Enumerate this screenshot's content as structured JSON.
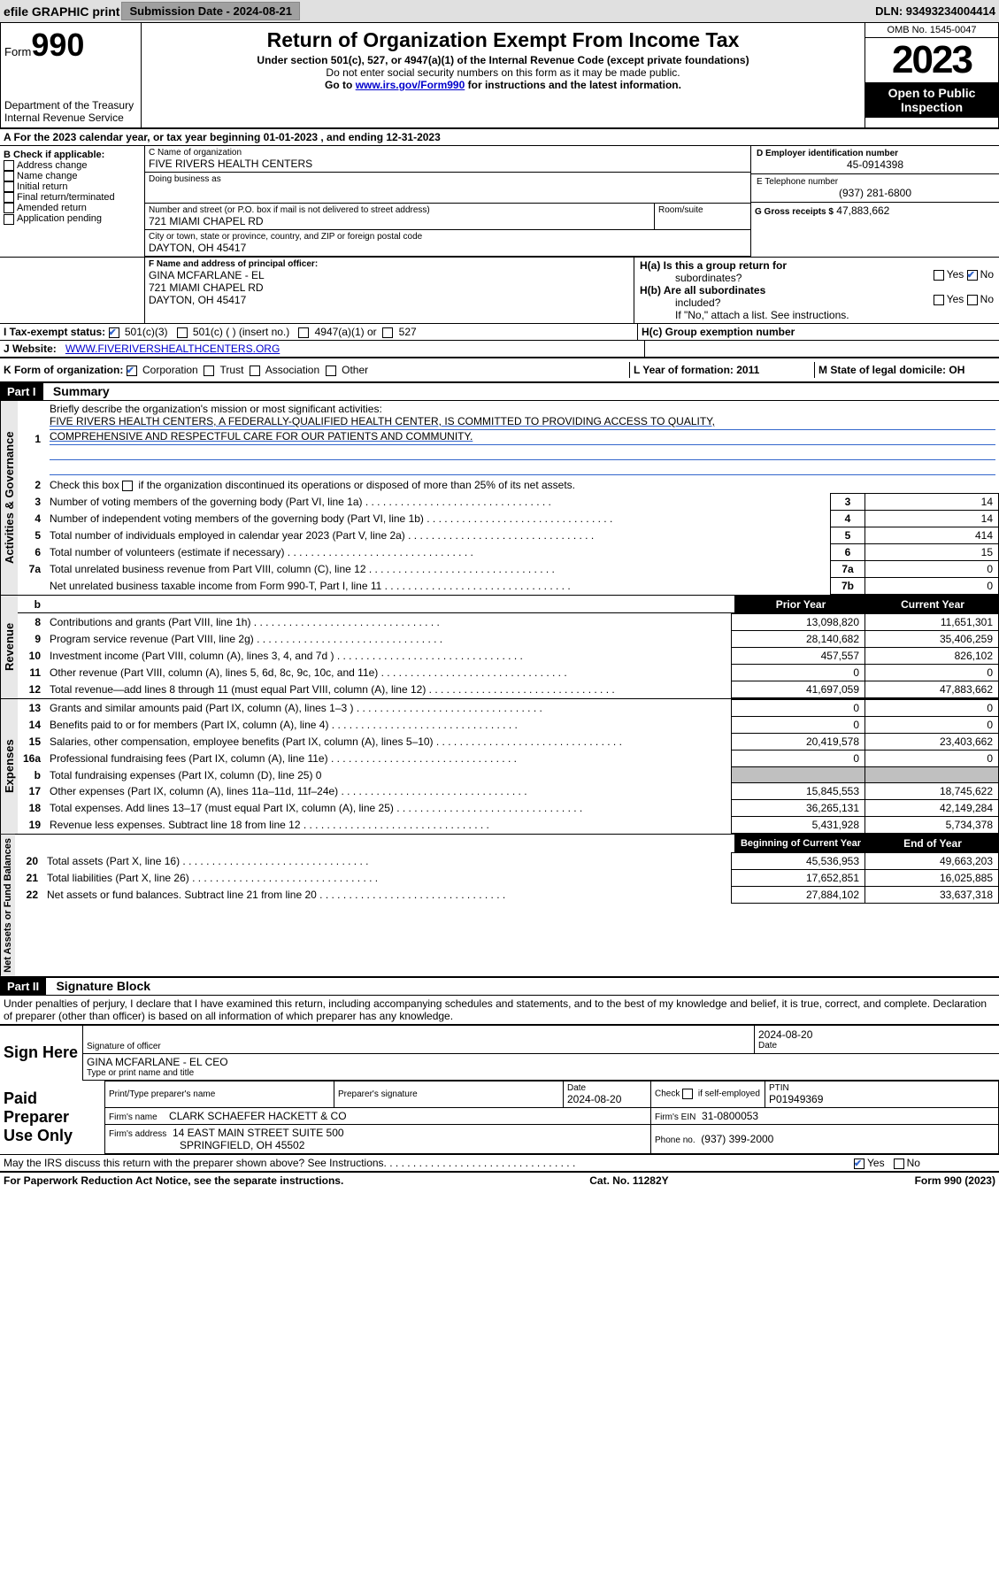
{
  "top": {
    "efile": "efile GRAPHIC print",
    "sub_date_label": "Submission Date - 2024-08-21",
    "dln": "DLN: 93493234004414"
  },
  "header": {
    "form_word": "Form",
    "form_num": "990",
    "dept": "Department of the Treasury\nInternal Revenue Service",
    "title": "Return of Organization Exempt From Income Tax",
    "subtitle": "Under section 501(c), 527, or 4947(a)(1) of the Internal Revenue Code (except private foundations)",
    "nosocial": "Do not enter social security numbers on this form as it may be made public.",
    "goto_pre": "Go to ",
    "goto_link": "www.irs.gov/Form990",
    "goto_post": " for instructions and the latest information.",
    "omb": "OMB No. 1545-0047",
    "year": "2023",
    "open": "Open to Public Inspection"
  },
  "rowA": "A For the 2023 calendar year, or tax year beginning 01-01-2023    , and ending 12-31-2023",
  "colB": {
    "hdr": "B Check if applicable:",
    "opts": [
      "Address change",
      "Name change",
      "Initial return",
      "Final return/terminated",
      "Amended return",
      "Application pending"
    ]
  },
  "colC": {
    "c_lbl": "C Name of organization",
    "c_name": "FIVE RIVERS HEALTH CENTERS",
    "dba_lbl": "Doing business as",
    "addr_lbl": "Number and street (or P.O. box if mail is not delivered to street address)",
    "addr": "721 MIAMI CHAPEL RD",
    "room_lbl": "Room/suite",
    "city_lbl": "City or town, state or province, country, and ZIP or foreign postal code",
    "city": "DAYTON, OH  45417",
    "f_lbl": "F Name and address of principal officer:",
    "f_name": "GINA MCFARLANE - EL",
    "f_addr": "721 MIAMI CHAPEL RD",
    "f_city": "DAYTON, OH  45417"
  },
  "colD": {
    "d_lbl": "D Employer identification number",
    "ein": "45-0914398",
    "e_lbl": "E Telephone number",
    "phone": "(937) 281-6800",
    "g_lbl": "G Gross receipts $",
    "g_amt": "47,883,662"
  },
  "colH": {
    "ha_lbl1": "H(a)  Is this a group return for",
    "ha_lbl2": "subordinates?",
    "ha_yes": "Yes",
    "ha_no": "No",
    "hb_lbl1": "H(b)  Are all subordinates",
    "hb_lbl2": "included?",
    "hb_note": "If \"No,\" attach a list. See instructions.",
    "hc_lbl": "H(c)  Group exemption number"
  },
  "rowI": {
    "lbl": "I    Tax-exempt status:",
    "opt1": "501(c)(3)",
    "opt2": "501(c) (  ) (insert no.)",
    "opt3": "4947(a)(1) or",
    "opt4": "527"
  },
  "rowJ": {
    "lbl": "J    Website:",
    "val": "WWW.FIVERIVERSHEALTHCENTERS.ORG"
  },
  "rowK": {
    "lbl": "K Form of organization:",
    "opts": [
      "Corporation",
      "Trust",
      "Association",
      "Other"
    ],
    "l_lbl": "L Year of formation: 2011",
    "m_lbl": "M State of legal domicile: OH"
  },
  "partI": {
    "hdr": "Part I",
    "title": "Summary",
    "l1": "Briefly describe the organization's mission or most significant activities:",
    "mission1": "FIVE RIVERS HEALTH CENTERS, A FEDERALLY-QUALIFIED HEALTH CENTER, IS COMMITTED TO PROVIDING ACCESS TO QUALITY,",
    "mission2": "COMPREHENSIVE AND RESPECTFUL CARE FOR OUR PATIENTS AND COMMUNITY.",
    "l2": "Check this box      if the organization discontinued its operations or disposed of more than 25% of its net assets.",
    "tabs": {
      "gov": "Activities & Governance",
      "rev": "Revenue",
      "exp": "Expenses",
      "net": "Net Assets or Fund Balances"
    },
    "lines_gov": [
      {
        "n": "3",
        "t": "Number of voting members of the governing body (Part VI, line 1a)",
        "k": "3",
        "v": "14"
      },
      {
        "n": "4",
        "t": "Number of independent voting members of the governing body (Part VI, line 1b)",
        "k": "4",
        "v": "14"
      },
      {
        "n": "5",
        "t": "Total number of individuals employed in calendar year 2023 (Part V, line 2a)",
        "k": "5",
        "v": "414"
      },
      {
        "n": "6",
        "t": "Total number of volunteers (estimate if necessary)",
        "k": "6",
        "v": "15"
      },
      {
        "n": "7a",
        "t": "Total unrelated business revenue from Part VIII, column (C), line 12",
        "k": "7a",
        "v": "0"
      },
      {
        "n": "",
        "t": "Net unrelated business taxable income from Form 990-T, Part I, line 11",
        "k": "7b",
        "v": "0"
      }
    ],
    "col_hdr_prior": "Prior Year",
    "col_hdr_curr": "Current Year",
    "lines_rev": [
      {
        "n": "8",
        "t": "Contributions and grants (Part VIII, line 1h)",
        "p": "13,098,820",
        "c": "11,651,301"
      },
      {
        "n": "9",
        "t": "Program service revenue (Part VIII, line 2g)",
        "p": "28,140,682",
        "c": "35,406,259"
      },
      {
        "n": "10",
        "t": "Investment income (Part VIII, column (A), lines 3, 4, and 7d )",
        "p": "457,557",
        "c": "826,102"
      },
      {
        "n": "11",
        "t": "Other revenue (Part VIII, column (A), lines 5, 6d, 8c, 9c, 10c, and 11e)",
        "p": "0",
        "c": "0"
      },
      {
        "n": "12",
        "t": "Total revenue—add lines 8 through 11 (must equal Part VIII, column (A), line 12)",
        "p": "41,697,059",
        "c": "47,883,662"
      }
    ],
    "lines_exp": [
      {
        "n": "13",
        "t": "Grants and similar amounts paid (Part IX, column (A), lines 1–3 )",
        "p": "0",
        "c": "0"
      },
      {
        "n": "14",
        "t": "Benefits paid to or for members (Part IX, column (A), line 4)",
        "p": "0",
        "c": "0"
      },
      {
        "n": "15",
        "t": "Salaries, other compensation, employee benefits (Part IX, column (A), lines 5–10)",
        "p": "20,419,578",
        "c": "23,403,662"
      },
      {
        "n": "16a",
        "t": "Professional fundraising fees (Part IX, column (A), line 11e)",
        "p": "0",
        "c": "0"
      },
      {
        "n": "b",
        "t": "Total fundraising expenses (Part IX, column (D), line 25) 0",
        "p": "",
        "c": "",
        "grey": true
      },
      {
        "n": "17",
        "t": "Other expenses (Part IX, column (A), lines 11a–11d, 11f–24e)",
        "p": "15,845,553",
        "c": "18,745,622"
      },
      {
        "n": "18",
        "t": "Total expenses. Add lines 13–17 (must equal Part IX, column (A), line 25)",
        "p": "36,265,131",
        "c": "42,149,284"
      },
      {
        "n": "19",
        "t": "Revenue less expenses. Subtract line 18 from line 12",
        "p": "5,431,928",
        "c": "5,734,378"
      }
    ],
    "col_hdr_boy": "Beginning of Current Year",
    "col_hdr_eoy": "End of Year",
    "lines_net": [
      {
        "n": "20",
        "t": "Total assets (Part X, line 16)",
        "p": "45,536,953",
        "c": "49,663,203"
      },
      {
        "n": "21",
        "t": "Total liabilities (Part X, line 26)",
        "p": "17,652,851",
        "c": "16,025,885"
      },
      {
        "n": "22",
        "t": "Net assets or fund balances. Subtract line 21 from line 20",
        "p": "27,884,102",
        "c": "33,637,318"
      }
    ]
  },
  "partII": {
    "hdr": "Part II",
    "title": "Signature Block",
    "decl": "Under penalties of perjury, I declare that I have examined this return, including accompanying schedules and statements, and to the best of my knowledge and belief, it is true, correct, and complete. Declaration of preparer (other than officer) is based on all information of which preparer has any knowledge."
  },
  "sign": {
    "here": "Sign Here",
    "sig_lbl": "Signature of officer",
    "date_lbl": "Date",
    "date": "2024-08-20",
    "name": "GINA MCFARLANE - EL CEO",
    "name_lbl": "Type or print name and title"
  },
  "paid": {
    "lbl": "Paid Preparer Use Only",
    "prep_name_lbl": "Print/Type preparer's name",
    "prep_sig_lbl": "Preparer's signature",
    "prep_date_lbl": "Date",
    "prep_date": "2024-08-20",
    "check_lbl": "Check       if self-employed",
    "ptin_lbl": "PTIN",
    "ptin": "P01949369",
    "firm_name_lbl": "Firm's name",
    "firm_name": "CLARK SCHAEFER HACKETT & CO",
    "firm_ein_lbl": "Firm's EIN",
    "firm_ein": "31-0800053",
    "firm_addr_lbl": "Firm's address",
    "firm_addr1": "14 EAST MAIN STREET SUITE 500",
    "firm_addr2": "SPRINGFIELD, OH  45502",
    "phone_lbl": "Phone no.",
    "phone": "(937) 399-2000"
  },
  "discuss": {
    "q": "May the IRS discuss this return with the preparer shown above? See Instructions.",
    "yes": "Yes",
    "no": "No"
  },
  "footer": {
    "left": "For Paperwork Reduction Act Notice, see the separate instructions.",
    "mid": "Cat. No. 11282Y",
    "right": "Form 990 (2023)"
  }
}
